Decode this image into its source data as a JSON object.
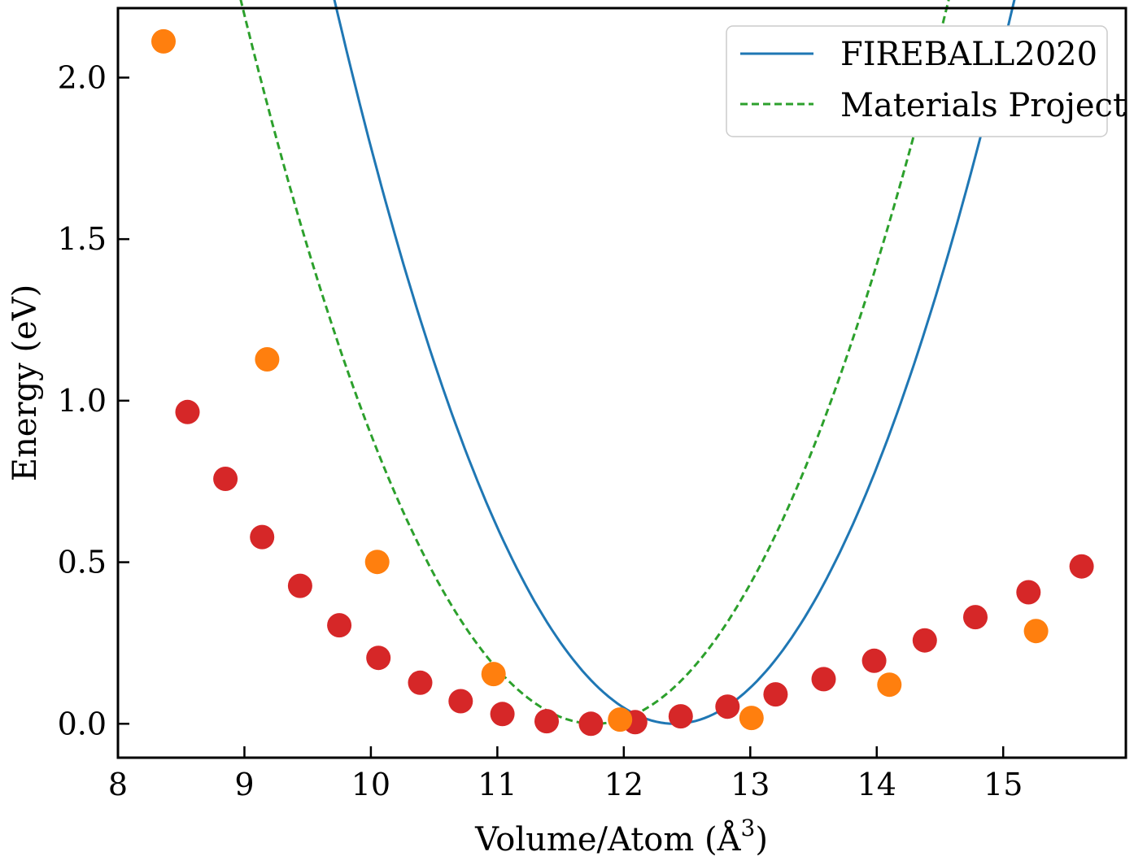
{
  "chart_data": {
    "type": "scatter",
    "xlabel": "Volume/Atom (Å",
    "xlabel_superscript": "3",
    "xlabel_close": ")",
    "ylabel": "Energy (eV)",
    "xlim": [
      8.0,
      15.97
    ],
    "ylim": [
      -0.105,
      2.215
    ],
    "xticks": [
      8,
      9,
      10,
      11,
      12,
      13,
      14,
      15
    ],
    "xtick_labels": [
      "8",
      "9",
      "10",
      "11",
      "12",
      "13",
      "14",
      "15"
    ],
    "yticks": [
      0.0,
      0.5,
      1.0,
      1.5,
      2.0
    ],
    "ytick_labels": [
      "0.0",
      "0.5",
      "1.0",
      "1.5",
      "2.0"
    ],
    "grid": false,
    "legend_position": "top-right",
    "series": [
      {
        "name": "FIREBALL2020",
        "style": "solid-line",
        "color": "#1f77b4",
        "fit": {
          "a": 0.31,
          "x0": 12.4,
          "x_range": [
            8.36,
            15.26
          ]
        }
      },
      {
        "name": "Materials Project",
        "style": "dashed-line",
        "color": "#2ca02c",
        "fit": {
          "a": 0.286,
          "x0": 11.77,
          "x_range": [
            8.55,
            15.62
          ]
        }
      }
    ],
    "points": [
      {
        "group": "FIREBALL2020 computed",
        "color": "#ff7f0e",
        "x": [
          8.36,
          9.18,
          10.05,
          10.97,
          11.97,
          13.01,
          14.1,
          15.26
        ],
        "y": [
          2.112,
          1.128,
          0.501,
          0.154,
          0.013,
          0.018,
          0.121,
          0.287
        ]
      },
      {
        "group": "Materials Project computed",
        "color": "#d62728",
        "x": [
          8.55,
          8.85,
          9.14,
          9.44,
          9.75,
          10.06,
          10.39,
          10.71,
          11.04,
          11.39,
          11.74,
          12.09,
          12.45,
          12.82,
          13.2,
          13.58,
          13.98,
          14.38,
          14.78,
          15.2,
          15.62
        ],
        "y": [
          0.965,
          0.758,
          0.578,
          0.427,
          0.305,
          0.204,
          0.127,
          0.07,
          0.03,
          0.008,
          0.0,
          0.005,
          0.023,
          0.053,
          0.091,
          0.138,
          0.195,
          0.258,
          0.33,
          0.407,
          0.487
        ]
      }
    ]
  }
}
